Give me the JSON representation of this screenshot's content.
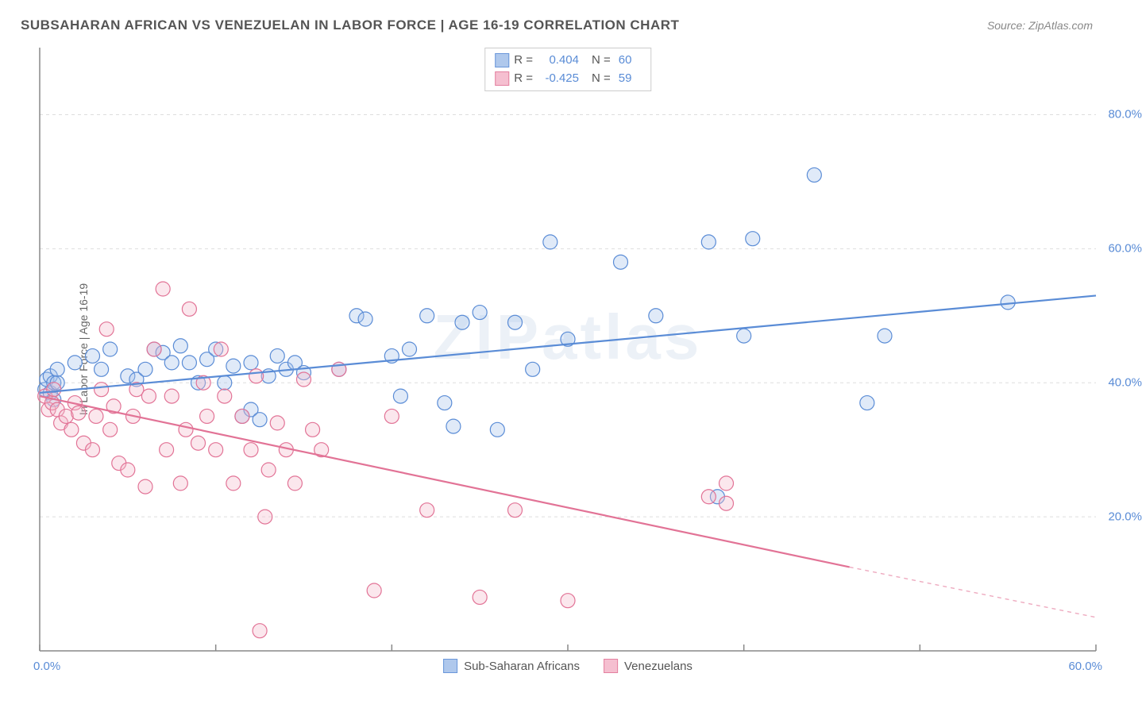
{
  "title": "SUBSAHARAN AFRICAN VS VENEZUELAN IN LABOR FORCE | AGE 16-19 CORRELATION CHART",
  "source": "Source: ZipAtlas.com",
  "watermark": "ZIPatlas",
  "chart": {
    "type": "scatter",
    "ylabel": "In Labor Force | Age 16-19",
    "xlim": [
      0,
      60
    ],
    "ylim": [
      0,
      90
    ],
    "x_ticks": [
      0,
      10,
      20,
      30,
      40,
      50,
      60
    ],
    "y_grid": [
      20,
      40,
      60,
      80
    ],
    "x_tick_labels": {
      "min": "0.0%",
      "max": "60.0%"
    },
    "y_tick_labels": [
      "20.0%",
      "40.0%",
      "60.0%",
      "80.0%"
    ],
    "background_color": "#ffffff",
    "grid_color": "#dddddd",
    "axis_color": "#888888",
    "marker_radius": 9,
    "marker_stroke_width": 1.2,
    "marker_fill_opacity": 0.35,
    "line_width": 2.2,
    "series": [
      {
        "name": "Sub-Saharan Africans",
        "color_stroke": "#5a8cd6",
        "color_fill": "#a7c3ea",
        "r": 0.404,
        "n": 60,
        "trend": {
          "x1": 0,
          "y1": 38.5,
          "x2": 60,
          "y2": 53
        },
        "points": [
          [
            0.3,
            39
          ],
          [
            0.4,
            40.5
          ],
          [
            0.6,
            41
          ],
          [
            0.6,
            38.5
          ],
          [
            0.8,
            37.5
          ],
          [
            0.8,
            40
          ],
          [
            1,
            40
          ],
          [
            1,
            42
          ],
          [
            2,
            43
          ],
          [
            3,
            44
          ],
          [
            3.5,
            42
          ],
          [
            4,
            45
          ],
          [
            5,
            41
          ],
          [
            5.5,
            40.5
          ],
          [
            6,
            42
          ],
          [
            6.5,
            45
          ],
          [
            7,
            44.5
          ],
          [
            7.5,
            43
          ],
          [
            8,
            45.5
          ],
          [
            8.5,
            43
          ],
          [
            9,
            40
          ],
          [
            9.5,
            43.5
          ],
          [
            10,
            45
          ],
          [
            10.5,
            40
          ],
          [
            11,
            42.5
          ],
          [
            11.5,
            35
          ],
          [
            12,
            36
          ],
          [
            12,
            43
          ],
          [
            12.5,
            34.5
          ],
          [
            13,
            41
          ],
          [
            13.5,
            44
          ],
          [
            14,
            42
          ],
          [
            14.5,
            43
          ],
          [
            15,
            41.5
          ],
          [
            17,
            42
          ],
          [
            18,
            50
          ],
          [
            18.5,
            49.5
          ],
          [
            20,
            44
          ],
          [
            20.5,
            38
          ],
          [
            21,
            45
          ],
          [
            22,
            50
          ],
          [
            23,
            37
          ],
          [
            23.5,
            33.5
          ],
          [
            24,
            49
          ],
          [
            25,
            50.5
          ],
          [
            26,
            33
          ],
          [
            27,
            49
          ],
          [
            28,
            42
          ],
          [
            29,
            61
          ],
          [
            30,
            46.5
          ],
          [
            33,
            58
          ],
          [
            35,
            50
          ],
          [
            38,
            61
          ],
          [
            38.5,
            23
          ],
          [
            40,
            47
          ],
          [
            40.5,
            61.5
          ],
          [
            44,
            71
          ],
          [
            47,
            37
          ],
          [
            48,
            47
          ],
          [
            55,
            52
          ]
        ]
      },
      {
        "name": "Venezuelans",
        "color_stroke": "#e27396",
        "color_fill": "#f4b9cb",
        "r": -0.425,
        "n": 59,
        "trend": {
          "x1": 0,
          "y1": 38,
          "x2": 46,
          "y2": 12.5
        },
        "trend_dash": {
          "x1": 46,
          "y1": 12.5,
          "x2": 60,
          "y2": 5
        },
        "points": [
          [
            0.3,
            38
          ],
          [
            0.5,
            36
          ],
          [
            0.7,
            37
          ],
          [
            0.8,
            39
          ],
          [
            1,
            36
          ],
          [
            1.2,
            34
          ],
          [
            1.5,
            35
          ],
          [
            1.8,
            33
          ],
          [
            2,
            37
          ],
          [
            2.2,
            35.5
          ],
          [
            2.5,
            31
          ],
          [
            3,
            30
          ],
          [
            3.2,
            35
          ],
          [
            3.5,
            39
          ],
          [
            3.8,
            48
          ],
          [
            4,
            33
          ],
          [
            4.2,
            36.5
          ],
          [
            4.5,
            28
          ],
          [
            5,
            27
          ],
          [
            5.3,
            35
          ],
          [
            5.5,
            39
          ],
          [
            6,
            24.5
          ],
          [
            6.2,
            38
          ],
          [
            6.5,
            45
          ],
          [
            7,
            54
          ],
          [
            7.2,
            30
          ],
          [
            7.5,
            38
          ],
          [
            8,
            25
          ],
          [
            8.3,
            33
          ],
          [
            8.5,
            51
          ],
          [
            9,
            31
          ],
          [
            9.3,
            40
          ],
          [
            9.5,
            35
          ],
          [
            10,
            30
          ],
          [
            10.3,
            45
          ],
          [
            10.5,
            38
          ],
          [
            11,
            25
          ],
          [
            11.5,
            35
          ],
          [
            12,
            30
          ],
          [
            12.3,
            41
          ],
          [
            12.5,
            3
          ],
          [
            12.8,
            20
          ],
          [
            13,
            27
          ],
          [
            13.5,
            34
          ],
          [
            14,
            30
          ],
          [
            14.5,
            25
          ],
          [
            15,
            40.5
          ],
          [
            15.5,
            33
          ],
          [
            16,
            30
          ],
          [
            17,
            42
          ],
          [
            19,
            9
          ],
          [
            20,
            35
          ],
          [
            22,
            21
          ],
          [
            25,
            8
          ],
          [
            27,
            21
          ],
          [
            30,
            7.5
          ],
          [
            38,
            23
          ],
          [
            39,
            25
          ],
          [
            39,
            22
          ]
        ]
      }
    ],
    "corr_legend": {
      "r_label": "R =",
      "n_label": "N ="
    },
    "series_legend": [
      "Sub-Saharan Africans",
      "Venezuelans"
    ]
  }
}
